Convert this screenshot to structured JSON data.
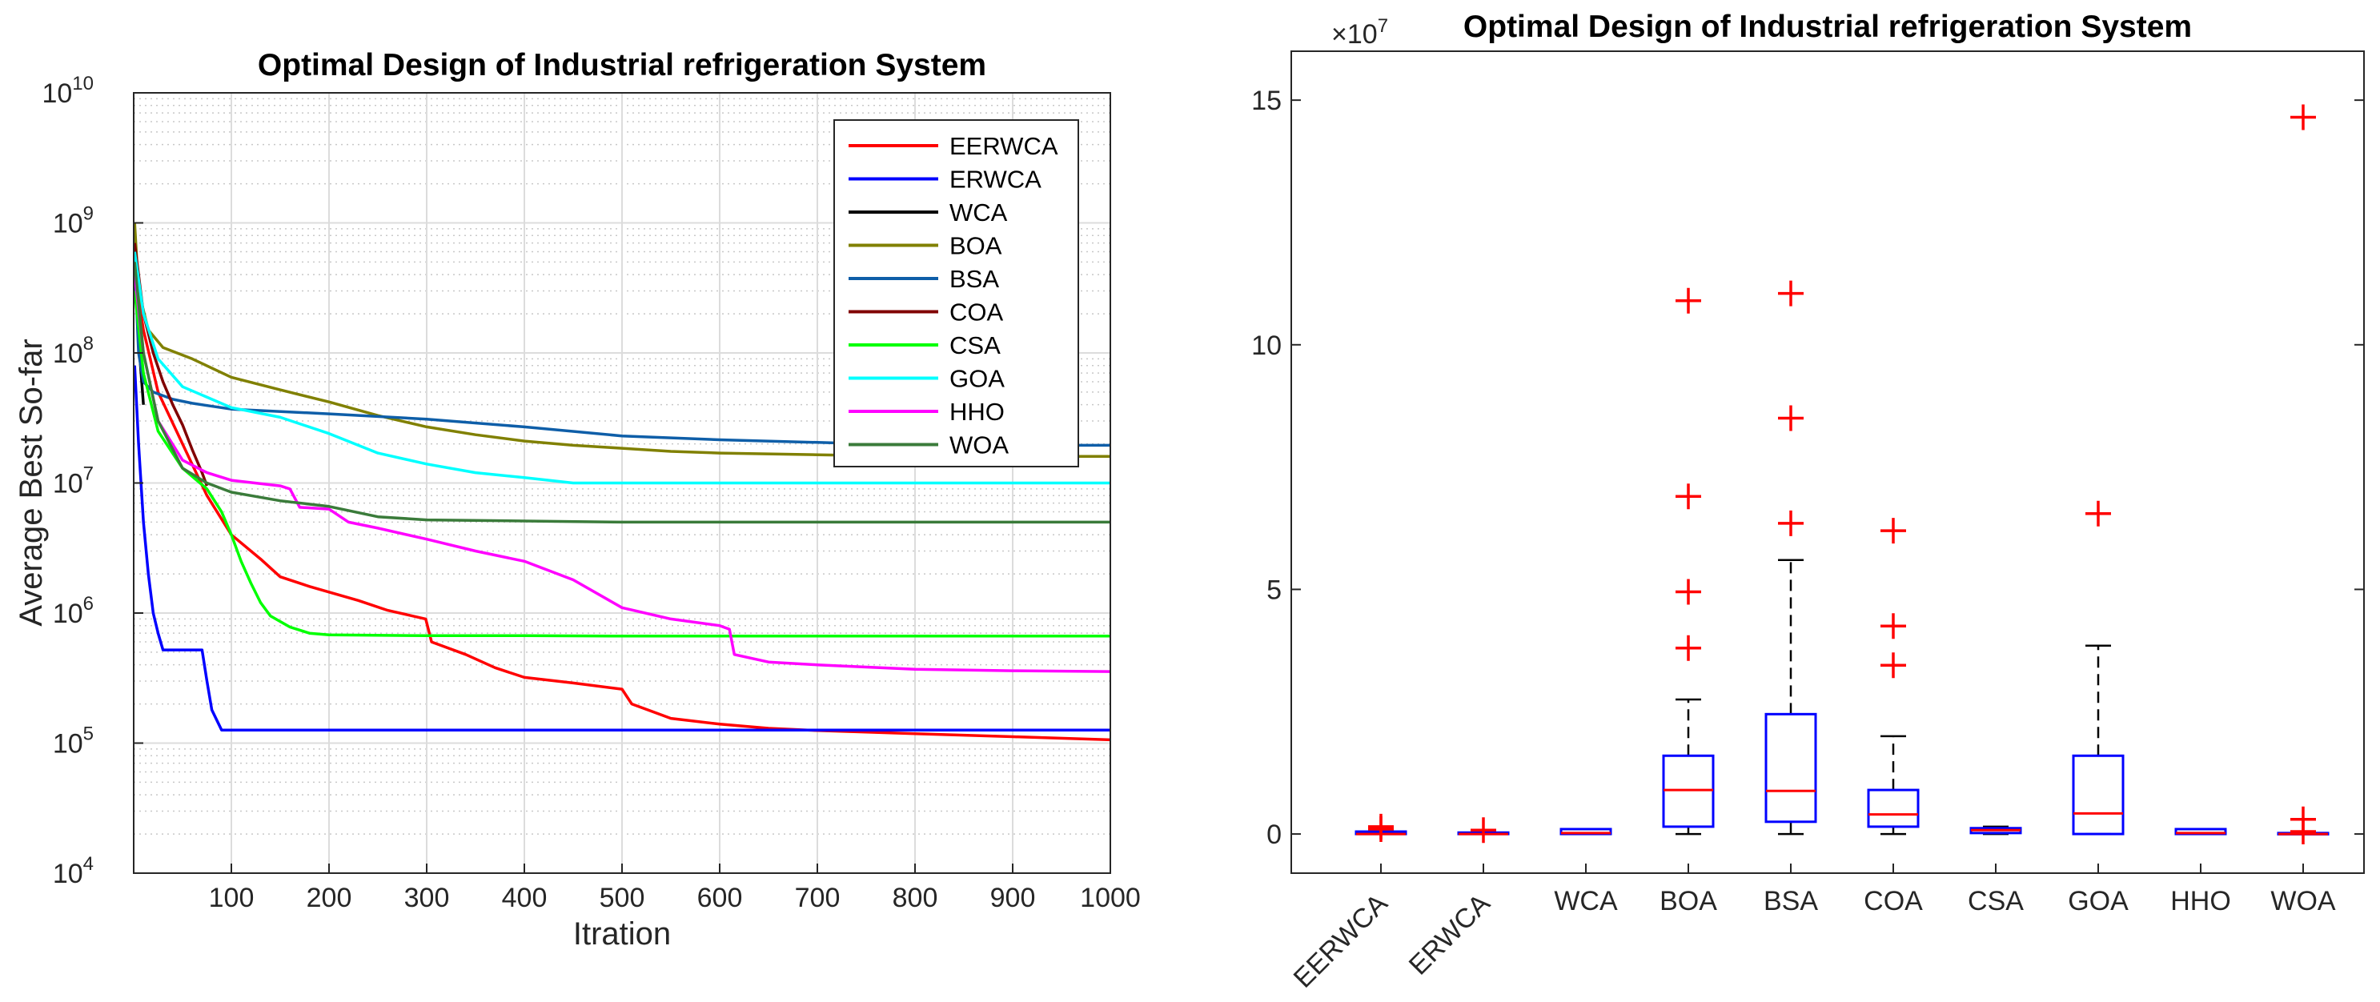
{
  "chart_data": [
    {
      "type": "line",
      "title": "Optimal Design of Industrial refrigeration System",
      "xlabel": "Itration",
      "ylabel": "Average Best So-far",
      "xlim": [
        0,
        1000
      ],
      "ylim": [
        10000,
        10000000000
      ],
      "yscale": "log",
      "x_ticks": [
        100,
        200,
        300,
        400,
        500,
        600,
        700,
        800,
        900,
        1000
      ],
      "x_tick_labels": [
        "100",
        "200",
        "300",
        "400",
        "500",
        "600",
        "700",
        "800",
        "900",
        "1000"
      ],
      "y_tick_labels": [
        {
          "base": "10",
          "exp": "4"
        },
        {
          "base": "10",
          "exp": "5"
        },
        {
          "base": "10",
          "exp": "6"
        },
        {
          "base": "10",
          "exp": "7"
        },
        {
          "base": "10",
          "exp": "8"
        },
        {
          "base": "10",
          "exp": "9"
        },
        {
          "base": "10",
          "exp": "10"
        }
      ],
      "grid": true,
      "legend_position": "top-right",
      "series": [
        {
          "name": "EERWCA",
          "color": "#ff0000",
          "x": [
            1,
            10,
            25,
            50,
            75,
            100,
            130,
            150,
            180,
            200,
            230,
            260,
            299,
            305,
            340,
            370,
            400,
            450,
            500,
            510,
            550,
            600,
            650,
            700,
            800,
            900,
            1000
          ],
          "y": [
            400000000,
            150000000,
            50000000,
            20000000,
            8000000,
            4000000,
            2600000,
            1900000,
            1600000,
            1450000,
            1250000,
            1050000,
            900000,
            600000,
            480000,
            380000,
            320000,
            290000,
            260000,
            200000,
            155000,
            140000,
            130000,
            125000,
            118000,
            112000,
            106000
          ]
        },
        {
          "name": "ERWCA",
          "color": "#0000ff",
          "x": [
            1,
            5,
            10,
            15,
            20,
            25,
            30,
            70,
            75,
            80,
            90,
            100,
            1000
          ],
          "y": [
            80000000,
            20000000,
            5000000,
            2000000,
            1000000,
            700000,
            520000,
            520000,
            300000,
            180000,
            126000,
            126000,
            126000
          ]
        },
        {
          "name": "WCA",
          "color": "#000000",
          "x": [
            1,
            3,
            6,
            10
          ],
          "y": [
            900000000,
            300000000,
            100000000,
            40000000
          ]
        },
        {
          "name": "BOA",
          "color": "#808000",
          "x": [
            1,
            5,
            15,
            30,
            60,
            100,
            150,
            200,
            250,
            300,
            350,
            400,
            450,
            500,
            550,
            600,
            700,
            800,
            900,
            1000
          ],
          "y": [
            1000000000,
            300000000,
            150000000,
            110000000,
            90000000,
            65000000,
            52000000,
            42000000,
            33000000,
            27000000,
            23500000,
            21000000,
            19500000,
            18500000,
            17500000,
            17000000,
            16500000,
            16000000,
            16000000,
            16000000
          ]
        },
        {
          "name": "BSA",
          "color": "#0e5ea8",
          "x": [
            1,
            5,
            10,
            20,
            40,
            60,
            100,
            200,
            300,
            400,
            500,
            600,
            700,
            800,
            900,
            1000
          ],
          "y": [
            500000000,
            100000000,
            60000000,
            50000000,
            44000000,
            41000000,
            37000000,
            34000000,
            31000000,
            27000000,
            23000000,
            21500000,
            20500000,
            19500000,
            19500000,
            19500000
          ]
        },
        {
          "name": "COA",
          "color": "#800000",
          "x": [
            1,
            10,
            20,
            30,
            40,
            50,
            60,
            70,
            75
          ],
          "y": [
            700000000,
            200000000,
            100000000,
            60000000,
            40000000,
            28000000,
            18000000,
            12000000,
            9500000
          ]
        },
        {
          "name": "CSA",
          "color": "#00ff00",
          "x": [
            1,
            10,
            25,
            50,
            75,
            90,
            100,
            110,
            120,
            130,
            140,
            160,
            180,
            200,
            300,
            400,
            500,
            600,
            700,
            800,
            900,
            1000
          ],
          "y": [
            300000000,
            70000000,
            25000000,
            13000000,
            9000000,
            6000000,
            4000000,
            2500000,
            1700000,
            1200000,
            950000,
            780000,
            700000,
            680000,
            670000,
            670000,
            665000,
            665000,
            665000,
            665000,
            665000,
            665000
          ]
        },
        {
          "name": "GOA",
          "color": "#00ffff",
          "x": [
            1,
            10,
            25,
            50,
            100,
            150,
            200,
            250,
            300,
            350,
            400,
            450,
            500,
            600,
            700,
            800,
            900,
            1000
          ],
          "y": [
            600000000,
            200000000,
            90000000,
            55000000,
            38000000,
            32000000,
            24000000,
            17000000,
            14000000,
            12000000,
            11000000,
            10000000,
            10000000,
            10000000,
            10000000,
            10000000,
            10000000,
            10000000
          ]
        },
        {
          "name": "HHO",
          "color": "#ff00ff",
          "x": [
            1,
            10,
            25,
            50,
            75,
            100,
            150,
            160,
            170,
            200,
            220,
            250,
            300,
            350,
            400,
            450,
            500,
            550,
            600,
            610,
            615,
            650,
            700,
            800,
            900,
            1000
          ],
          "y": [
            400000000,
            100000000,
            30000000,
            15000000,
            12000000,
            10500000,
            9500000,
            9000000,
            6500000,
            6300000,
            5000000,
            4500000,
            3700000,
            3000000,
            2500000,
            1800000,
            1100000,
            900000,
            800000,
            750000,
            480000,
            420000,
            400000,
            370000,
            360000,
            355000
          ]
        },
        {
          "name": "WOA",
          "color": "#3a7b3a",
          "x": [
            1,
            10,
            25,
            50,
            75,
            100,
            150,
            200,
            250,
            300,
            400,
            500,
            700,
            1000
          ],
          "y": [
            500000000,
            100000000,
            30000000,
            13000000,
            10000000,
            8500000,
            7300000,
            6600000,
            5500000,
            5200000,
            5100000,
            5000000,
            5000000,
            5000000
          ]
        }
      ]
    },
    {
      "type": "box",
      "title": "Optimal Design of Industrial refrigeration System",
      "exponent_label": {
        "prefix": "×10",
        "exp": "7"
      },
      "ylim": [
        -0.8,
        16
      ],
      "y_ticks": [
        0,
        5,
        10,
        15
      ],
      "y_tick_labels": [
        "0",
        "5",
        "10",
        "15"
      ],
      "grid": false,
      "box_color": "#0000ff",
      "median_color": "#ff0000",
      "outlier_color": "#ff0000",
      "categories": [
        "EERWCA",
        "ERWCA",
        "WCA",
        "BOA",
        "BSA",
        "COA",
        "CSA",
        "GOA",
        "HHO",
        "WOA"
      ],
      "boxes": [
        {
          "name": "EERWCA",
          "q1": 0.0,
          "median": 0.0,
          "q3": 0.05,
          "whisker_low": 0.0,
          "whisker_high": 0.05,
          "outliers": [
            0.1,
            0.15
          ]
        },
        {
          "name": "ERWCA",
          "q1": 0.0,
          "median": 0.0,
          "q3": 0.03,
          "whisker_low": 0.0,
          "whisker_high": 0.03,
          "outliers": [
            0.08
          ]
        },
        {
          "name": "WCA",
          "q1": 0.0,
          "median": 0.02,
          "q3": 0.1,
          "whisker_low": 0.0,
          "whisker_high": 0.1,
          "outliers": []
        },
        {
          "name": "BOA",
          "q1": 0.15,
          "median": 0.9,
          "q3": 1.6,
          "whisker_low": 0.0,
          "whisker_high": 2.75,
          "outliers": [
            3.8,
            4.95,
            6.9,
            10.9
          ]
        },
        {
          "name": "BSA",
          "q1": 0.25,
          "median": 0.88,
          "q3": 2.45,
          "whisker_low": 0.0,
          "whisker_high": 5.6,
          "outliers": [
            6.35,
            8.5,
            11.05
          ]
        },
        {
          "name": "COA",
          "q1": 0.15,
          "median": 0.4,
          "q3": 0.9,
          "whisker_low": 0.0,
          "whisker_high": 2.0,
          "outliers": [
            3.45,
            4.25,
            6.2
          ]
        },
        {
          "name": "CSA",
          "q1": 0.02,
          "median": 0.08,
          "q3": 0.12,
          "whisker_low": 0.0,
          "whisker_high": 0.15,
          "outliers": []
        },
        {
          "name": "GOA",
          "q1": 0.0,
          "median": 0.42,
          "q3": 1.6,
          "whisker_low": 0.0,
          "whisker_high": 3.85,
          "outliers": [
            6.55
          ]
        },
        {
          "name": "HHO",
          "q1": 0.0,
          "median": 0.02,
          "q3": 0.1,
          "whisker_low": 0.0,
          "whisker_high": 0.1,
          "outliers": []
        },
        {
          "name": "WOA",
          "q1": 0.0,
          "median": 0.0,
          "q3": 0.02,
          "whisker_low": 0.0,
          "whisker_high": 0.02,
          "outliers": [
            0.05,
            0.3,
            14.65
          ]
        }
      ]
    }
  ]
}
